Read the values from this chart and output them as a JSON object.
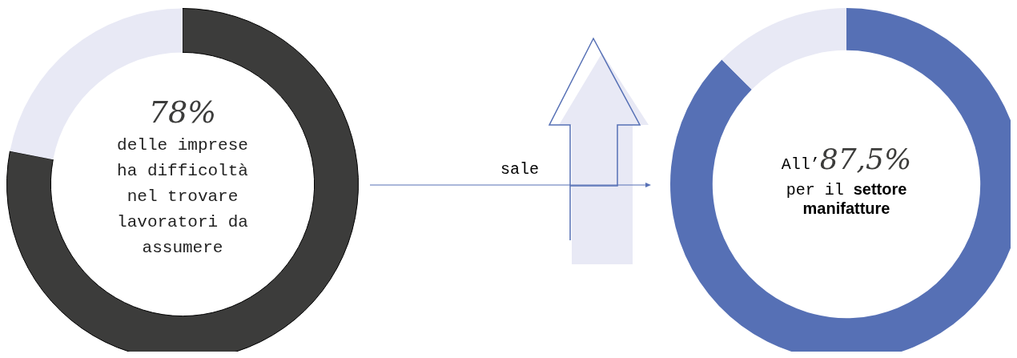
{
  "chart_data": [
    {
      "type": "donut",
      "categories": [
        null,
        null
      ],
      "values": [
        78,
        22
      ],
      "colors": [
        "#3c3c3b",
        "#e8e9f5"
      ],
      "annotations": [
        "78%",
        "delle imprese ha difficoltà nel trovare lavoratori da assumere"
      ]
    },
    {
      "type": "other",
      "annotations": [
        "sale"
      ]
    },
    {
      "type": "donut",
      "categories": [
        null,
        null
      ],
      "values": [
        87.5,
        12.5
      ],
      "colors": [
        "#5670b5",
        "#e8e9f5"
      ],
      "annotations": [
        "All’",
        "87,5%",
        "per il",
        "settore manifatture"
      ]
    }
  ]
}
